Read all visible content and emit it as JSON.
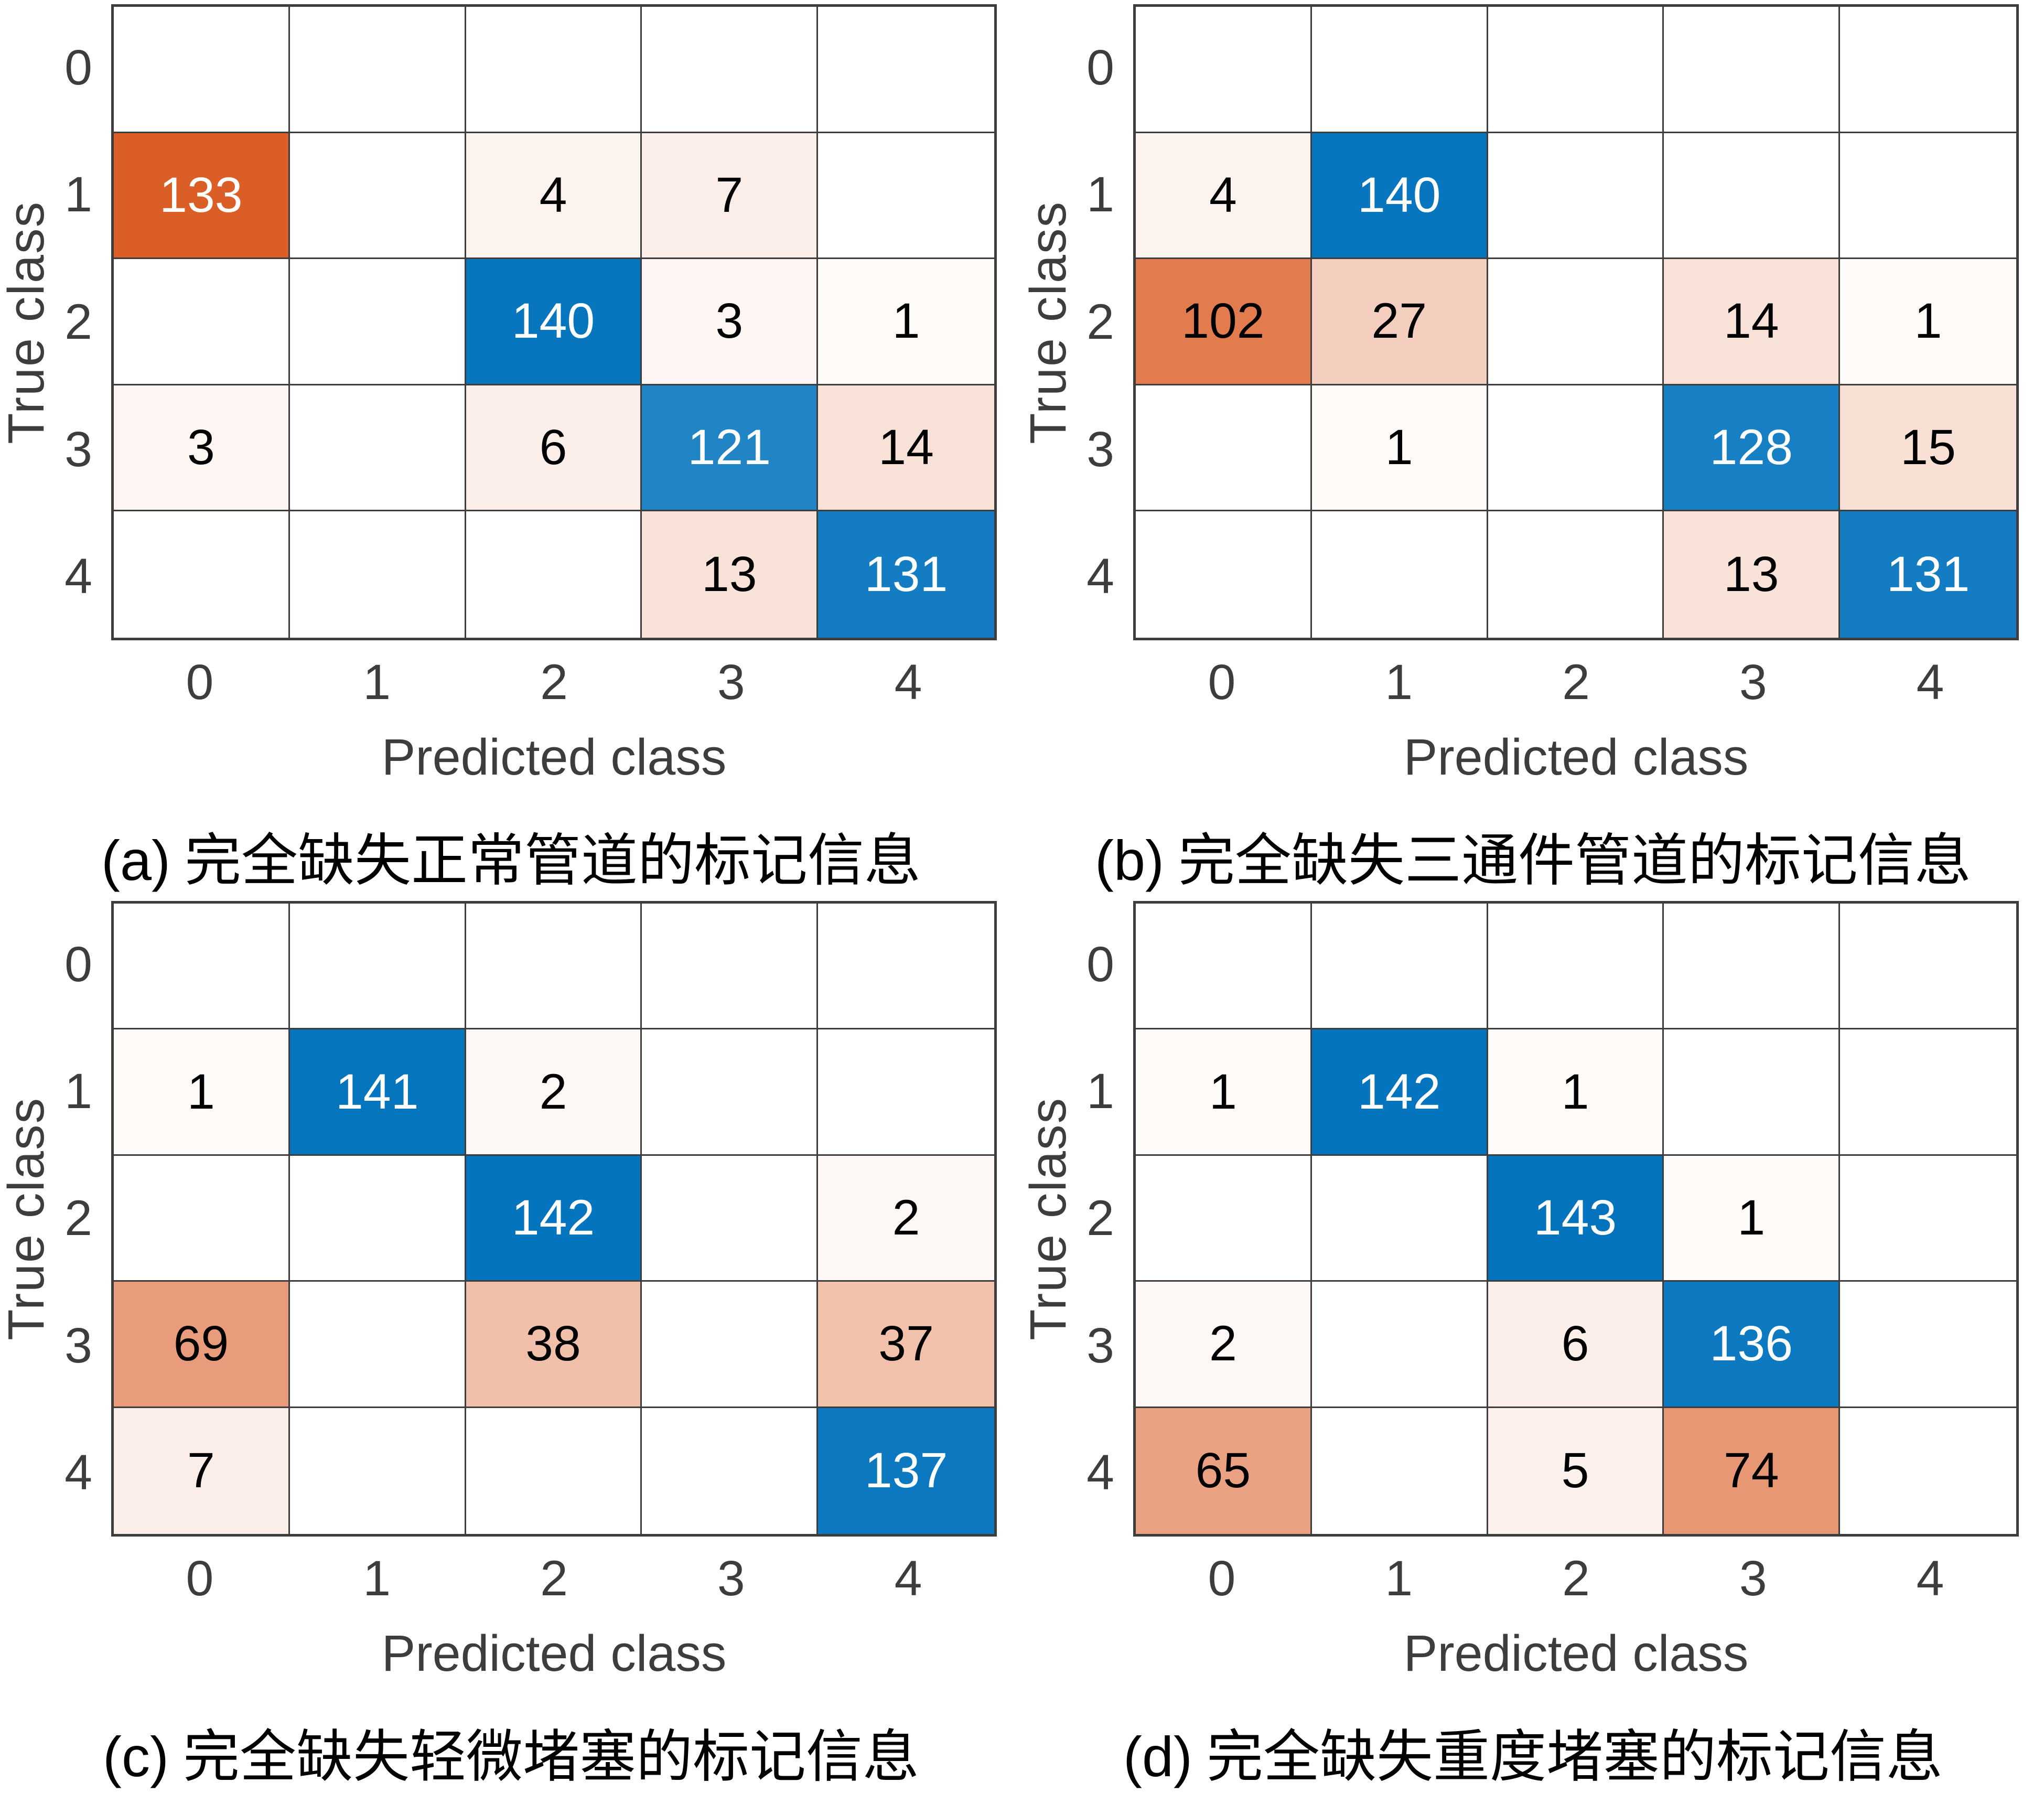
{
  "figure": {
    "background": "#ffffff",
    "value_max": 145,
    "color_exponent": 0.75,
    "colors": {
      "diagonal_anchor": "#0072bd",
      "offdiagonal_anchor": "#d95319",
      "grid_line": "#3d3d3d",
      "axis_text": "#3d3d3d",
      "cell_text_dark": "#000000",
      "cell_text_light": "#ffffff"
    }
  },
  "chart_data": [
    {
      "type": "heatmap",
      "panel": "a",
      "caption_label": "(a)",
      "caption_text": " 完全缺失正常管道的标记信息",
      "xlabel": "Predicted class",
      "ylabel": "True class",
      "x_ticks": [
        "0",
        "1",
        "2",
        "3",
        "4"
      ],
      "y_ticks": [
        "0",
        "1",
        "2",
        "3",
        "4"
      ],
      "matrix": [
        [
          null,
          null,
          null,
          null,
          null
        ],
        [
          133,
          null,
          4,
          7,
          null
        ],
        [
          null,
          null,
          140,
          3,
          1
        ],
        [
          3,
          null,
          6,
          121,
          14
        ],
        [
          null,
          null,
          null,
          13,
          131
        ]
      ]
    },
    {
      "type": "heatmap",
      "panel": "b",
      "caption_label": "(b)",
      "caption_text": " 完全缺失三通件管道的标记信息",
      "xlabel": "Predicted class",
      "ylabel": "True class",
      "x_ticks": [
        "0",
        "1",
        "2",
        "3",
        "4"
      ],
      "y_ticks": [
        "0",
        "1",
        "2",
        "3",
        "4"
      ],
      "matrix": [
        [
          null,
          null,
          null,
          null,
          null
        ],
        [
          4,
          140,
          null,
          null,
          null
        ],
        [
          102,
          27,
          null,
          14,
          1
        ],
        [
          null,
          1,
          null,
          128,
          15
        ],
        [
          null,
          null,
          null,
          13,
          131
        ]
      ]
    },
    {
      "type": "heatmap",
      "panel": "c",
      "caption_label": "(c)",
      "caption_text": " 完全缺失轻微堵塞的标记信息",
      "xlabel": "Predicted class",
      "ylabel": "True class",
      "x_ticks": [
        "0",
        "1",
        "2",
        "3",
        "4"
      ],
      "y_ticks": [
        "0",
        "1",
        "2",
        "3",
        "4"
      ],
      "matrix": [
        [
          null,
          null,
          null,
          null,
          null
        ],
        [
          1,
          141,
          2,
          null,
          null
        ],
        [
          null,
          null,
          142,
          null,
          2
        ],
        [
          69,
          null,
          38,
          null,
          37
        ],
        [
          7,
          null,
          null,
          null,
          137
        ]
      ]
    },
    {
      "type": "heatmap",
      "panel": "d",
      "caption_label": "(d)",
      "caption_text": " 完全缺失重度堵塞的标记信息",
      "xlabel": "Predicted class",
      "ylabel": "True class",
      "x_ticks": [
        "0",
        "1",
        "2",
        "3",
        "4"
      ],
      "y_ticks": [
        "0",
        "1",
        "2",
        "3",
        "4"
      ],
      "matrix": [
        [
          null,
          null,
          null,
          null,
          null
        ],
        [
          1,
          142,
          1,
          null,
          null
        ],
        [
          null,
          null,
          143,
          1,
          null
        ],
        [
          2,
          null,
          6,
          136,
          null
        ],
        [
          65,
          null,
          5,
          74,
          null
        ]
      ]
    }
  ]
}
